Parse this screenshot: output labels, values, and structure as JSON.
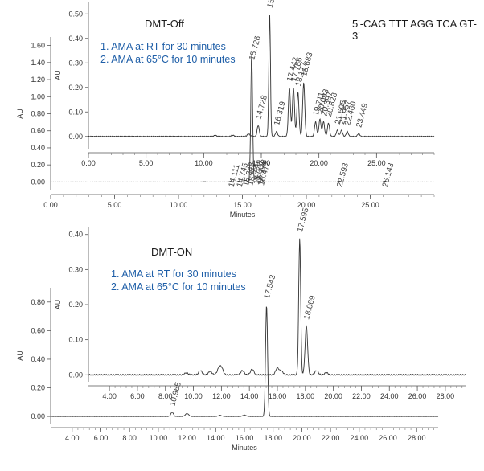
{
  "chart_data": [
    {
      "type": "line",
      "panel": "DMT-Off (front)",
      "annotation_title": "DMT-Off",
      "conditions": [
        "1.  AMA at RT for 30 minutes",
        "2.  AMA at 65°C for 10 minutes"
      ],
      "sequence": "5'-CAG TTT AGG TCA GT-3'",
      "xlabel": "",
      "ylabel": "AU",
      "xlim": [
        0,
        30
      ],
      "ylim": [
        -0.05,
        0.55
      ],
      "xticks": [
        "0.00",
        "5.00",
        "10.00",
        "15.00",
        "20.00",
        "25.00"
      ],
      "yticks": [
        "0.00",
        "0.10",
        "0.20",
        "0.30",
        "0.40",
        "0.50"
      ],
      "peaks": [
        {
          "label": "14.728",
          "rt": 14.73,
          "height": 0.045
        },
        {
          "label": "15.724",
          "rt": 15.724,
          "height": 0.5
        },
        {
          "label": "16.319",
          "rt": 16.32,
          "height": 0.02
        },
        {
          "label": "17.442",
          "rt": 17.44,
          "height": 0.2
        },
        {
          "label": "17.786",
          "rt": 17.79,
          "height": 0.2
        },
        {
          "label": "18.177",
          "rt": 18.18,
          "height": 0.18
        },
        {
          "label": "18.683",
          "rt": 18.68,
          "height": 0.22
        },
        {
          "label": "19.711",
          "rt": 19.71,
          "height": 0.06
        },
        {
          "label": "20.093",
          "rt": 20.09,
          "height": 0.07
        },
        {
          "label": "20.397",
          "rt": 20.4,
          "height": 0.06
        },
        {
          "label": "20.828",
          "rt": 20.83,
          "height": 0.055
        },
        {
          "label": "21.605",
          "rt": 21.6,
          "height": 0.025
        },
        {
          "label": "21.957",
          "rt": 21.96,
          "height": 0.025
        },
        {
          "label": "22.460",
          "rt": 22.46,
          "height": 0.02
        },
        {
          "label": "23.449",
          "rt": 23.45,
          "height": 0.012
        }
      ]
    },
    {
      "type": "line",
      "panel": "DMT-Off (back)",
      "xlabel": "Minutes",
      "ylabel": "AU",
      "xlim": [
        0,
        30
      ],
      "ylim": [
        -0.1,
        1.7
      ],
      "xticks": [
        "0.00",
        "5.00",
        "10.00",
        "15.00",
        "20.00",
        "25.00"
      ],
      "yticks": [
        "0.00",
        "0.20",
        "0.40",
        "0.60",
        "0.80",
        "1.00",
        "1.20",
        "1.40",
        "1.60"
      ],
      "peaks": [
        {
          "label": "14.111",
          "rt": 14.11,
          "height": 0.01
        },
        {
          "label": "14.745",
          "rt": 14.75,
          "height": 0.01
        },
        {
          "label": "15.248",
          "rt": 15.25,
          "height": 0.02
        },
        {
          "label": "15.599",
          "rt": 15.6,
          "height": 0.03
        },
        {
          "label": "15.726",
          "rt": 15.726,
          "height": 1.5
        },
        {
          "label": "16.062",
          "rt": 16.06,
          "height": 0.04
        },
        {
          "label": "16.228",
          "rt": 16.23,
          "height": 0.05
        },
        {
          "label": "16.472",
          "rt": 16.47,
          "height": 0.03
        },
        {
          "label": "22.593",
          "rt": 22.59,
          "height": 0.01
        },
        {
          "label": "26.143",
          "rt": 26.14,
          "height": 0.01
        }
      ]
    },
    {
      "type": "line",
      "panel": "DMT-ON (front)",
      "annotation_title": "DMT-ON",
      "conditions": [
        "1.  AMA at RT for 30 minutes",
        "2.  AMA at 65°C for 10 minutes"
      ],
      "xlabel": "",
      "ylabel": "AU",
      "xlim": [
        2.5,
        29.5
      ],
      "ylim": [
        -0.02,
        0.42
      ],
      "xticks": [
        "4.00",
        "6.00",
        "8.00",
        "10.00",
        "12.00",
        "14.00",
        "16.00",
        "18.00",
        "20.00",
        "22.00",
        "24.00",
        "26.00",
        "28.00"
      ],
      "yticks": [
        "0.00",
        "0.10",
        "0.20",
        "0.30",
        "0.40"
      ],
      "peaks": [
        {
          "label": "17.595",
          "rt": 17.595,
          "height": 0.39
        },
        {
          "label": "18.069",
          "rt": 18.07,
          "height": 0.14
        }
      ]
    },
    {
      "type": "line",
      "panel": "DMT-ON (back)",
      "xlabel": "Minutes",
      "ylabel": "AU",
      "xlim": [
        2.5,
        29.5
      ],
      "ylim": [
        -0.05,
        0.9
      ],
      "xticks": [
        "4.00",
        "6.00",
        "8.00",
        "10.00",
        "12.00",
        "14.00",
        "16.00",
        "18.00",
        "20.00",
        "22.00",
        "24.00",
        "26.00",
        "28.00"
      ],
      "yticks": [
        "0.00",
        "0.20",
        "0.40",
        "0.60",
        "0.80"
      ],
      "peaks": [
        {
          "label": "10.965",
          "rt": 10.965,
          "height": 0.03
        },
        {
          "label": "17.543",
          "rt": 17.543,
          "height": 0.78
        }
      ]
    }
  ]
}
